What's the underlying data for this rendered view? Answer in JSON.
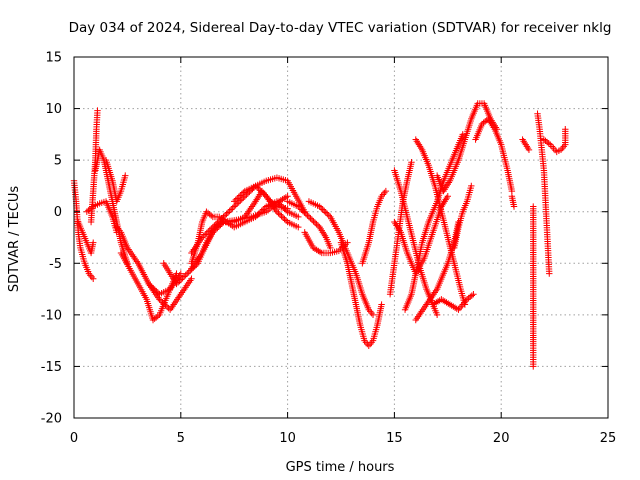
{
  "chart_data": {
    "type": "scatter",
    "title": "Day 034 of 2024, Sidereal Day-to-day VTEC variation (SDTVAR) for receiver nklg",
    "xlabel": "GPS time / hours",
    "ylabel": "SDTVAR / TECUs",
    "xlim": [
      0,
      25
    ],
    "ylim": [
      -20,
      15
    ],
    "xticks": [
      0,
      5,
      10,
      15,
      20,
      25
    ],
    "yticks": [
      -20,
      -15,
      -10,
      -5,
      0,
      5,
      10,
      15
    ],
    "xtick_labels": [
      "0",
      "5",
      "10",
      "15",
      "20",
      "25"
    ],
    "ytick_labels": [
      "-20",
      "-15",
      "-10",
      "-5",
      "0",
      "5",
      "10",
      "15"
    ],
    "grid": true,
    "marker": "+",
    "color": "#ff0000",
    "series": [
      {
        "name": "arc-1",
        "points": [
          [
            0,
            3
          ],
          [
            0.1,
            1
          ],
          [
            0.2,
            -2
          ],
          [
            0.3,
            -3.5
          ],
          [
            0.5,
            -5
          ],
          [
            0.7,
            -6
          ],
          [
            0.9,
            -6.5
          ]
        ]
      },
      {
        "name": "arc-2",
        "points": [
          [
            0.2,
            -1
          ],
          [
            0.4,
            -2
          ],
          [
            0.6,
            -3
          ],
          [
            0.8,
            -4
          ],
          [
            0.9,
            -3
          ]
        ]
      },
      {
        "name": "arc-3",
        "points": [
          [
            0.8,
            -1
          ],
          [
            0.9,
            2
          ],
          [
            1.0,
            5
          ],
          [
            1.05,
            8
          ],
          [
            1.1,
            9.8
          ]
        ]
      },
      {
        "name": "arc-4",
        "points": [
          [
            0.6,
            0
          ],
          [
            0.9,
            0.5
          ],
          [
            1.2,
            0.8
          ],
          [
            1.5,
            1
          ],
          [
            1.8,
            -0.5
          ],
          [
            2.0,
            -2
          ]
        ]
      },
      {
        "name": "arc-5",
        "points": [
          [
            1.0,
            4
          ],
          [
            1.2,
            6
          ],
          [
            1.4,
            5
          ],
          [
            1.6,
            3
          ],
          [
            1.8,
            1
          ],
          [
            2.0,
            -1
          ],
          [
            2.2,
            -3
          ],
          [
            2.5,
            -5
          ]
        ]
      },
      {
        "name": "arc-6",
        "points": [
          [
            1.5,
            5
          ],
          [
            1.8,
            3
          ],
          [
            2.0,
            1
          ],
          [
            2.2,
            2
          ],
          [
            2.4,
            3.5
          ]
        ]
      },
      {
        "name": "arc-7",
        "points": [
          [
            2.0,
            -1.5
          ],
          [
            2.2,
            -2
          ],
          [
            2.5,
            -3.5
          ],
          [
            3.0,
            -5
          ],
          [
            3.5,
            -7
          ],
          [
            4.0,
            -8
          ],
          [
            4.5,
            -7.5
          ],
          [
            5.0,
            -6
          ]
        ]
      },
      {
        "name": "arc-8",
        "points": [
          [
            2.2,
            -4
          ],
          [
            2.6,
            -5.5
          ],
          [
            3.0,
            -7
          ],
          [
            3.4,
            -8.5
          ],
          [
            3.7,
            -10.5
          ],
          [
            4.0,
            -10
          ],
          [
            4.4,
            -8
          ],
          [
            4.8,
            -6
          ]
        ]
      },
      {
        "name": "arc-9",
        "points": [
          [
            3.5,
            -7
          ],
          [
            4.0,
            -8.5
          ],
          [
            4.5,
            -9.5
          ],
          [
            5.0,
            -8
          ],
          [
            5.5,
            -6.5
          ]
        ]
      },
      {
        "name": "arc-10",
        "points": [
          [
            4.2,
            -5
          ],
          [
            4.8,
            -7
          ],
          [
            5.3,
            -6
          ],
          [
            5.8,
            -5
          ],
          [
            6.2,
            -3
          ],
          [
            6.6,
            -1.5
          ],
          [
            7.0,
            -1
          ],
          [
            7.6,
            -0.8
          ],
          [
            8.3,
            -0.5
          ],
          [
            9.0,
            0
          ],
          [
            9.6,
            1
          ],
          [
            10.0,
            1.5
          ]
        ]
      },
      {
        "name": "arc-11",
        "points": [
          [
            5.5,
            -4
          ],
          [
            6.0,
            -2.5
          ],
          [
            6.5,
            -1.5
          ],
          [
            7.0,
            -0.5
          ],
          [
            7.5,
            0.5
          ],
          [
            8.0,
            1.5
          ],
          [
            8.5,
            2.5
          ],
          [
            9.0,
            3
          ],
          [
            9.5,
            3.3
          ],
          [
            10.0,
            3
          ],
          [
            10.4,
            1.5
          ],
          [
            10.8,
            0
          ]
        ]
      },
      {
        "name": "arc-12",
        "points": [
          [
            5.5,
            -5
          ],
          [
            5.8,
            -3
          ],
          [
            6.0,
            -1
          ],
          [
            6.2,
            0
          ],
          [
            6.5,
            -0.5
          ],
          [
            6.8,
            -0.5
          ],
          [
            7.5,
            -1.5
          ],
          [
            8.0,
            -1
          ],
          [
            8.5,
            -0.5
          ],
          [
            9.0,
            0.5
          ],
          [
            9.5,
            1
          ],
          [
            10.0,
            0
          ],
          [
            10.5,
            -0.5
          ]
        ]
      },
      {
        "name": "arc-13",
        "points": [
          [
            5.5,
            -5.5
          ],
          [
            6.0,
            -4
          ],
          [
            6.5,
            -2
          ],
          [
            7.0,
            -1
          ],
          [
            7.5,
            -1
          ],
          [
            8.0,
            -0.5
          ],
          [
            8.5,
            1
          ],
          [
            8.8,
            2
          ],
          [
            9.2,
            1
          ],
          [
            9.5,
            0.5
          ],
          [
            10,
            0.3
          ]
        ]
      },
      {
        "name": "arc-14",
        "points": [
          [
            7.5,
            1
          ],
          [
            8.0,
            2
          ],
          [
            8.5,
            2.5
          ],
          [
            9.0,
            1.5
          ],
          [
            9.5,
            0
          ],
          [
            10.0,
            -1
          ],
          [
            10.5,
            -1.5
          ]
        ]
      },
      {
        "name": "arc-15",
        "points": [
          [
            10.0,
            1
          ],
          [
            10.5,
            0.5
          ],
          [
            11.0,
            -0.5
          ],
          [
            11.5,
            -1.5
          ],
          [
            11.8,
            -2.5
          ],
          [
            12.0,
            -3.5
          ]
        ]
      },
      {
        "name": "arc-16",
        "points": [
          [
            10.8,
            -2
          ],
          [
            11.2,
            -3.5
          ],
          [
            11.6,
            -4
          ],
          [
            12.0,
            -4
          ],
          [
            12.4,
            -3.8
          ],
          [
            12.8,
            -3
          ]
        ]
      },
      {
        "name": "arc-17",
        "points": [
          [
            11.0,
            1
          ],
          [
            11.5,
            0.5
          ],
          [
            12.0,
            -0.5
          ],
          [
            12.4,
            -2
          ],
          [
            12.8,
            -4
          ],
          [
            13.2,
            -6
          ],
          [
            13.5,
            -8
          ],
          [
            13.8,
            -9.5
          ],
          [
            14.0,
            -10
          ]
        ]
      },
      {
        "name": "arc-18",
        "points": [
          [
            12.5,
            -3
          ],
          [
            12.8,
            -5
          ],
          [
            13.0,
            -7
          ],
          [
            13.2,
            -9
          ],
          [
            13.4,
            -11
          ],
          [
            13.6,
            -12.5
          ],
          [
            13.8,
            -13
          ],
          [
            14.0,
            -12.5
          ],
          [
            14.2,
            -11
          ],
          [
            14.4,
            -9
          ]
        ]
      },
      {
        "name": "arc-19",
        "points": [
          [
            13.5,
            -5
          ],
          [
            13.8,
            -3
          ],
          [
            14.0,
            -1
          ],
          [
            14.2,
            0.5
          ],
          [
            14.4,
            1.5
          ],
          [
            14.6,
            2
          ]
        ]
      },
      {
        "name": "arc-20",
        "points": [
          [
            14.8,
            -8
          ],
          [
            15.0,
            -5
          ],
          [
            15.2,
            -2
          ],
          [
            15.4,
            1
          ],
          [
            15.6,
            3
          ],
          [
            15.8,
            4.8
          ]
        ]
      },
      {
        "name": "arc-21",
        "points": [
          [
            15.0,
            4
          ],
          [
            15.3,
            2
          ],
          [
            15.6,
            -0.5
          ],
          [
            15.9,
            -3
          ],
          [
            16.2,
            -5.5
          ],
          [
            16.5,
            -7.5
          ],
          [
            16.8,
            -9
          ],
          [
            17.0,
            -10
          ]
        ]
      },
      {
        "name": "arc-22",
        "points": [
          [
            15.5,
            -9.5
          ],
          [
            15.8,
            -8
          ],
          [
            16.0,
            -6
          ],
          [
            16.3,
            -3
          ],
          [
            16.6,
            -1
          ],
          [
            17.0,
            1
          ],
          [
            17.3,
            3
          ],
          [
            17.7,
            5
          ],
          [
            18.0,
            6.5
          ],
          [
            18.2,
            7.5
          ]
        ]
      },
      {
        "name": "arc-23",
        "points": [
          [
            16.0,
            7
          ],
          [
            16.3,
            6
          ],
          [
            16.6,
            4.5
          ],
          [
            16.9,
            2.5
          ],
          [
            17.2,
            0
          ],
          [
            17.5,
            -2.5
          ],
          [
            17.8,
            -5
          ],
          [
            18.1,
            -7.5
          ],
          [
            18.3,
            -9
          ]
        ]
      },
      {
        "name": "arc-24",
        "points": [
          [
            15.0,
            -1
          ],
          [
            15.3,
            -2
          ],
          [
            15.6,
            -4
          ],
          [
            16.0,
            -6
          ],
          [
            16.4,
            -4.5
          ],
          [
            16.8,
            -2
          ],
          [
            17.2,
            0.5
          ],
          [
            17.5,
            1.5
          ]
        ]
      },
      {
        "name": "arc-25",
        "points": [
          [
            16.0,
            -10.5
          ],
          [
            16.5,
            -9
          ],
          [
            17.0,
            -7.5
          ],
          [
            17.5,
            -5
          ],
          [
            17.8,
            -3
          ],
          [
            18.0,
            -1
          ]
        ]
      },
      {
        "name": "arc-26",
        "points": [
          [
            16.8,
            -9
          ],
          [
            17.2,
            -8.5
          ],
          [
            17.6,
            -9
          ],
          [
            18.0,
            -9.5
          ],
          [
            18.4,
            -8.5
          ],
          [
            18.7,
            -8
          ]
        ]
      },
      {
        "name": "arc-27",
        "points": [
          [
            17.0,
            3.5
          ],
          [
            17.3,
            2
          ],
          [
            17.6,
            3
          ],
          [
            18.0,
            5
          ],
          [
            18.3,
            7
          ],
          [
            18.6,
            9
          ],
          [
            18.9,
            10.5
          ],
          [
            19.2,
            10.5
          ],
          [
            19.5,
            9
          ],
          [
            19.8,
            8
          ]
        ]
      },
      {
        "name": "arc-28",
        "points": [
          [
            17.8,
            -3.5
          ],
          [
            18.0,
            -1.5
          ],
          [
            18.2,
            0
          ],
          [
            18.4,
            1
          ],
          [
            18.6,
            2.5
          ]
        ]
      },
      {
        "name": "arc-29",
        "points": [
          [
            18.8,
            7
          ],
          [
            19.1,
            8.5
          ],
          [
            19.4,
            9
          ],
          [
            19.7,
            8
          ],
          [
            20.0,
            6.5
          ],
          [
            20.3,
            4
          ],
          [
            20.5,
            2
          ]
        ]
      },
      {
        "name": "arc-30",
        "points": [
          [
            20.6,
            0.5
          ],
          [
            20.5,
            1.5
          ]
        ]
      },
      {
        "name": "arc-31",
        "points": [
          [
            21.0,
            7
          ],
          [
            21.3,
            6
          ]
        ]
      },
      {
        "name": "arc-32",
        "points": [
          [
            21.5,
            0.5
          ],
          [
            21.5,
            -12
          ],
          [
            21.5,
            -13
          ],
          [
            21.5,
            -15
          ]
        ]
      },
      {
        "name": "arc-33",
        "points": [
          [
            21.7,
            9.5
          ],
          [
            21.8,
            8
          ],
          [
            21.9,
            6
          ],
          [
            22.0,
            4
          ],
          [
            22.05,
            2
          ],
          [
            22.1,
            0
          ],
          [
            22.15,
            -2
          ],
          [
            22.2,
            -4
          ],
          [
            22.25,
            -6
          ]
        ]
      },
      {
        "name": "arc-34",
        "points": [
          [
            22.0,
            7
          ],
          [
            22.3,
            6.5
          ],
          [
            22.6,
            5.8
          ],
          [
            22.8,
            6
          ],
          [
            23.0,
            6.5
          ],
          [
            23.0,
            8
          ]
        ]
      }
    ]
  }
}
